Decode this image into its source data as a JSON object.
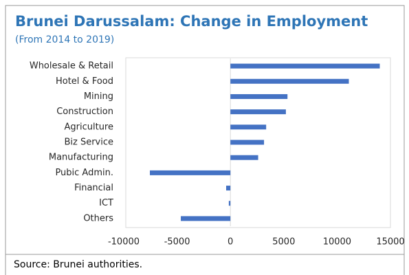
{
  "chart_data": {
    "type": "bar",
    "orientation": "horizontal",
    "title": "Brunei Darussalam: Change in Employment",
    "subtitle": "(From 2014 to 2019)",
    "source": "Source: Brunei authorities.",
    "categories": [
      "Wholesale & Retail",
      "Hotel & Food",
      "Mining",
      "Construction",
      "Agriculture",
      "Biz Service",
      "Manufacturing",
      "Pubic Admin.",
      "Financial",
      "ICT",
      "Others"
    ],
    "values": [
      14000,
      11100,
      5350,
      5200,
      3350,
      3150,
      2600,
      -7550,
      -400,
      -150,
      -4650
    ],
    "color": "#4472c4",
    "xlim": [
      -10000,
      15000
    ],
    "xticks": [
      -10000,
      -5000,
      0,
      5000,
      10000,
      15000
    ],
    "grid": false
  }
}
